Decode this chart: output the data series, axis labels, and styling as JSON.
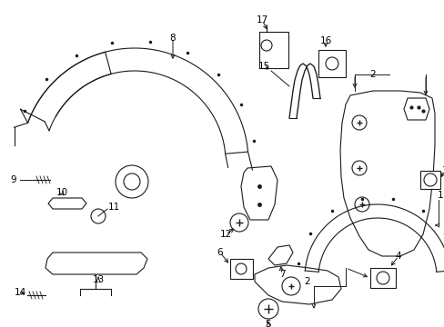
{
  "background_color": "#ffffff",
  "line_color": "#1a1a1a",
  "lw": 0.8,
  "fs": 7.5,
  "figsize": [
    4.89,
    3.6
  ],
  "dpi": 100
}
